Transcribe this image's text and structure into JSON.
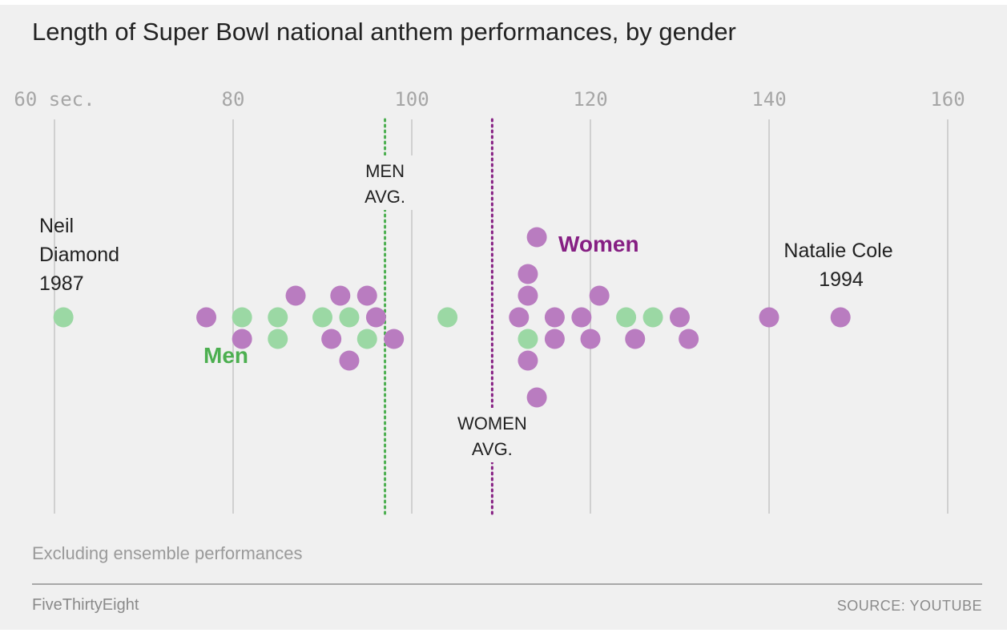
{
  "title": "Length of Super Bowl national anthem performances, by gender",
  "note": "Excluding ensemble performances",
  "brand": "FiveThirtyEight",
  "source": "SOURCE: YOUTUBE",
  "colors": {
    "men": "#9bd8a4",
    "women": "#b97cc0",
    "men_label": "#4caf50",
    "women_label": "#861f83"
  },
  "chart_data": {
    "type": "scatter",
    "title": "Length of Super Bowl national anthem performances, by gender",
    "xlabel": "",
    "ylabel": "",
    "xlim": [
      60,
      160
    ],
    "x_ticks": [
      60,
      80,
      100,
      120,
      140,
      160
    ],
    "tick_labels": [
      "60 sec.",
      "80",
      "100",
      "120",
      "140",
      "160"
    ],
    "grid": true,
    "legend": [
      {
        "name": "Men",
        "color": "#9bd8a4"
      },
      {
        "name": "Women",
        "color": "#b97cc0"
      }
    ],
    "series": [
      {
        "name": "Men",
        "color": "#9bd8a4",
        "values": [
          61,
          81,
          85,
          85,
          90,
          93,
          95,
          104,
          113,
          124,
          127
        ]
      },
      {
        "name": "Women",
        "color": "#b97cc0",
        "values": [
          77,
          81,
          87,
          91,
          92,
          93,
          95,
          96,
          98,
          112,
          113,
          113,
          113,
          114,
          114,
          116,
          116,
          119,
          120,
          121,
          125,
          130,
          131,
          140,
          148
        ]
      }
    ],
    "averages": [
      {
        "name": "Men",
        "value": 97,
        "label": [
          "MEN",
          "AVG."
        ]
      },
      {
        "name": "Women",
        "value": 109,
        "label": [
          "WOMEN",
          "AVG."
        ]
      }
    ],
    "annotations": [
      {
        "lines": [
          "Neil",
          "Diamond",
          "1987"
        ]
      },
      {
        "lines": [
          "Natalie Cole",
          "1994"
        ]
      }
    ]
  }
}
